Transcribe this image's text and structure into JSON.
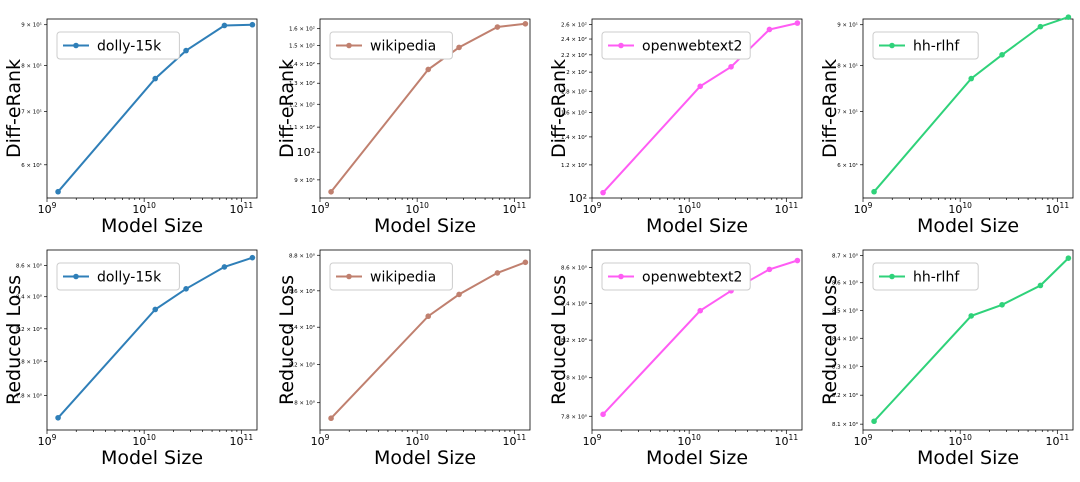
{
  "chart_data": [
    {
      "type": "line",
      "legend": "dolly-15k",
      "color": "#2f7fb8",
      "xlabel": "Model Size",
      "ylabel": "Diff-eRank",
      "xscale": "log",
      "yscale": "log",
      "xlim": [
        1000000000.0,
        145000000000.0
      ],
      "ylim": [
        54.5,
        91.5
      ],
      "x": [
        1300000000.0,
        13000000000.0,
        27000000000.0,
        67000000000.0,
        130000000000.0
      ],
      "y": [
        55.5,
        77.0,
        83.5,
        89.8,
        90.0
      ],
      "x_ticks": [
        {
          "value": 1000000000.0,
          "base": "10",
          "exp": "9"
        },
        {
          "value": 10000000000.0,
          "base": "10",
          "exp": "10"
        },
        {
          "value": 100000000000.0,
          "base": "10",
          "exp": "11"
        }
      ],
      "y_ticks": [
        {
          "value": 60,
          "label": "6 × 10¹"
        },
        {
          "value": 70,
          "label": "7 × 10¹"
        },
        {
          "value": 80,
          "label": "8 × 10¹"
        },
        {
          "value": 90,
          "label": "9 × 10¹"
        }
      ]
    },
    {
      "type": "line",
      "legend": "wikipedia",
      "color": "#c0806f",
      "xlabel": "Model Size",
      "ylabel": "Diff-eRank",
      "xscale": "log",
      "yscale": "log",
      "xlim": [
        1000000000.0,
        145000000000.0
      ],
      "ylim": [
        84,
        166
      ],
      "x": [
        1300000000.0,
        13000000000.0,
        27000000000.0,
        67000000000.0,
        130000000000.0
      ],
      "y": [
        86,
        137,
        149,
        161,
        163
      ],
      "x_ticks": [
        {
          "value": 1000000000.0,
          "base": "10",
          "exp": "9"
        },
        {
          "value": 10000000000.0,
          "base": "10",
          "exp": "10"
        },
        {
          "value": 100000000000.0,
          "base": "10",
          "exp": "11"
        }
      ],
      "y_ticks": [
        {
          "value": 90,
          "label": "9 × 10¹"
        },
        {
          "value": 100,
          "label": "10²",
          "major": true
        },
        {
          "value": 110,
          "label": "1.1 × 10²"
        },
        {
          "value": 120,
          "label": "1.2 × 10²"
        },
        {
          "value": 130,
          "label": "1.3 × 10²"
        },
        {
          "value": 140,
          "label": "1.4 × 10²"
        },
        {
          "value": 150,
          "label": "1.5 × 10²"
        },
        {
          "value": 160,
          "label": "1.6 × 10²"
        }
      ]
    },
    {
      "type": "line",
      "legend": "openwebtext2",
      "color": "#ff5cf4",
      "xlabel": "Model Size",
      "ylabel": "Diff-eRank",
      "xscale": "log",
      "yscale": "log",
      "xlim": [
        1000000000.0,
        145000000000.0
      ],
      "ylim": [
        100,
        268
      ],
      "x": [
        1300000000.0,
        13000000000.0,
        27000000000.0,
        67000000000.0,
        130000000000.0
      ],
      "y": [
        103,
        185,
        206,
        253,
        262
      ],
      "x_ticks": [
        {
          "value": 1000000000.0,
          "base": "10",
          "exp": "9"
        },
        {
          "value": 10000000000.0,
          "base": "10",
          "exp": "10"
        },
        {
          "value": 100000000000.0,
          "base": "10",
          "exp": "11"
        }
      ],
      "y_ticks": [
        {
          "value": 100,
          "label": "10²",
          "major": true
        },
        {
          "value": 120,
          "label": "1.2 × 10²"
        },
        {
          "value": 140,
          "label": "1.4 × 10²"
        },
        {
          "value": 160,
          "label": "1.6 × 10²"
        },
        {
          "value": 180,
          "label": "1.8 × 10²"
        },
        {
          "value": 200,
          "label": "2 × 10²"
        },
        {
          "value": 220,
          "label": "2.2 × 10²"
        },
        {
          "value": 240,
          "label": "2.4 × 10²"
        },
        {
          "value": 260,
          "label": "2.6 × 10²"
        }
      ]
    },
    {
      "type": "line",
      "legend": "hh-rlhf",
      "color": "#2fd27a",
      "xlabel": "Model Size",
      "ylabel": "Diff-eRank",
      "xscale": "log",
      "yscale": "log",
      "xlim": [
        1000000000.0,
        145000000000.0
      ],
      "ylim": [
        54.5,
        91.5
      ],
      "x": [
        1300000000.0,
        13000000000.0,
        27000000000.0,
        67000000000.0,
        130000000000.0
      ],
      "y": [
        55.5,
        77.0,
        82.5,
        89.5,
        92.0
      ],
      "x_ticks": [
        {
          "value": 1000000000.0,
          "base": "10",
          "exp": "9"
        },
        {
          "value": 10000000000.0,
          "base": "10",
          "exp": "10"
        },
        {
          "value": 100000000000.0,
          "base": "10",
          "exp": "11"
        }
      ],
      "y_ticks": [
        {
          "value": 60,
          "label": "6 × 10¹"
        },
        {
          "value": 70,
          "label": "7 × 10¹"
        },
        {
          "value": 80,
          "label": "8 × 10¹"
        },
        {
          "value": 90,
          "label": "9 × 10¹"
        }
      ]
    },
    {
      "type": "line",
      "legend": "dolly-15k",
      "color": "#2f7fb8",
      "xlabel": "Model Size",
      "ylabel": "Reduced Loss",
      "xscale": "log",
      "yscale": "log",
      "xlim": [
        1000000000.0,
        145000000000.0
      ],
      "ylim": [
        7.6,
        8.7
      ],
      "x": [
        1300000000.0,
        13000000000.0,
        27000000000.0,
        67000000000.0,
        130000000000.0
      ],
      "y": [
        7.67,
        8.32,
        8.45,
        8.59,
        8.65
      ],
      "x_ticks": [
        {
          "value": 1000000000.0,
          "base": "10",
          "exp": "9"
        },
        {
          "value": 10000000000.0,
          "base": "10",
          "exp": "10"
        },
        {
          "value": 100000000000.0,
          "base": "10",
          "exp": "11"
        }
      ],
      "y_ticks": [
        {
          "value": 7.8,
          "label": "7.8 × 10⁰"
        },
        {
          "value": 8.0,
          "label": "8 × 10⁰"
        },
        {
          "value": 8.2,
          "label": "8.2 × 10⁰"
        },
        {
          "value": 8.4,
          "label": "8.4 × 10⁰"
        },
        {
          "value": 8.6,
          "label": "8.6 × 10⁰"
        }
      ]
    },
    {
      "type": "line",
      "legend": "wikipedia",
      "color": "#c0806f",
      "xlabel": "Model Size",
      "ylabel": "Reduced Loss",
      "xscale": "log",
      "yscale": "log",
      "xlim": [
        1000000000.0,
        145000000000.0
      ],
      "ylim": [
        7.86,
        8.83
      ],
      "x": [
        1300000000.0,
        13000000000.0,
        27000000000.0,
        67000000000.0,
        130000000000.0
      ],
      "y": [
        7.92,
        8.46,
        8.58,
        8.7,
        8.76
      ],
      "x_ticks": [
        {
          "value": 1000000000.0,
          "base": "10",
          "exp": "9"
        },
        {
          "value": 10000000000.0,
          "base": "10",
          "exp": "10"
        },
        {
          "value": 100000000000.0,
          "base": "10",
          "exp": "11"
        }
      ],
      "y_ticks": [
        {
          "value": 8.0,
          "label": "8 × 10⁰"
        },
        {
          "value": 8.2,
          "label": "8.2 × 10⁰"
        },
        {
          "value": 8.4,
          "label": "8.4 × 10⁰"
        },
        {
          "value": 8.6,
          "label": "8.6 × 10⁰"
        },
        {
          "value": 8.8,
          "label": "8.8 × 10⁰"
        }
      ]
    },
    {
      "type": "line",
      "legend": "openwebtext2",
      "color": "#ff5cf4",
      "xlabel": "Model Size",
      "ylabel": "Reduced Loss",
      "xscale": "log",
      "yscale": "log",
      "xlim": [
        1000000000.0,
        145000000000.0
      ],
      "ylim": [
        7.73,
        8.7
      ],
      "x": [
        1300000000.0,
        13000000000.0,
        27000000000.0,
        67000000000.0,
        130000000000.0
      ],
      "y": [
        7.81,
        8.36,
        8.47,
        8.59,
        8.64
      ],
      "x_ticks": [
        {
          "value": 1000000000.0,
          "base": "10",
          "exp": "9"
        },
        {
          "value": 10000000000.0,
          "base": "10",
          "exp": "10"
        },
        {
          "value": 100000000000.0,
          "base": "10",
          "exp": "11"
        }
      ],
      "y_ticks": [
        {
          "value": 7.8,
          "label": "7.8 × 10⁰"
        },
        {
          "value": 8.0,
          "label": "8 × 10⁰"
        },
        {
          "value": 8.2,
          "label": "8.2 × 10⁰"
        },
        {
          "value": 8.4,
          "label": "8.4 × 10⁰"
        },
        {
          "value": 8.6,
          "label": "8.6 × 10⁰"
        }
      ]
    },
    {
      "type": "line",
      "legend": "hh-rlhf",
      "color": "#2fd27a",
      "xlabel": "Model Size",
      "ylabel": "Reduced Loss",
      "xscale": "log",
      "yscale": "log",
      "xlim": [
        1000000000.0,
        145000000000.0
      ],
      "ylim": [
        8.08,
        8.72
      ],
      "x": [
        1300000000.0,
        13000000000.0,
        27000000000.0,
        67000000000.0,
        130000000000.0
      ],
      "y": [
        8.11,
        8.48,
        8.52,
        8.59,
        8.69
      ],
      "x_ticks": [
        {
          "value": 1000000000.0,
          "base": "10",
          "exp": "9"
        },
        {
          "value": 10000000000.0,
          "base": "10",
          "exp": "10"
        },
        {
          "value": 100000000000.0,
          "base": "10",
          "exp": "11"
        }
      ],
      "y_ticks": [
        {
          "value": 8.1,
          "label": "8.1 × 10⁰"
        },
        {
          "value": 8.2,
          "label": "8.2 × 10⁰"
        },
        {
          "value": 8.3,
          "label": "8.3 × 10⁰"
        },
        {
          "value": 8.4,
          "label": "8.4 × 10⁰"
        },
        {
          "value": 8.5,
          "label": "8.5 × 10⁰"
        },
        {
          "value": 8.6,
          "label": "8.6 × 10⁰"
        },
        {
          "value": 8.7,
          "label": "8.7 × 10⁰"
        }
      ]
    }
  ]
}
